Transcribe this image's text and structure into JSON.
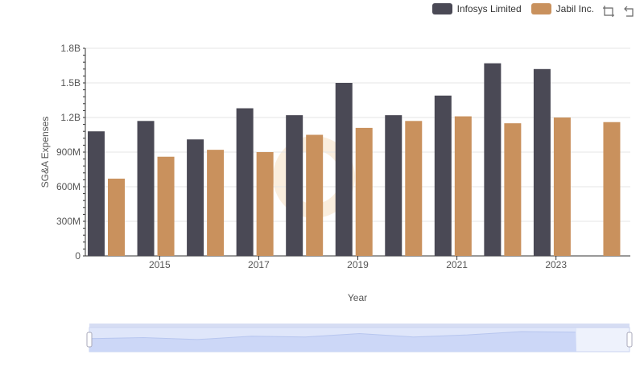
{
  "chart_data": {
    "type": "bar",
    "categories": [
      "2014",
      "2015",
      "2016",
      "2017",
      "2018",
      "2019",
      "2020",
      "2021",
      "2022",
      "2023",
      "2024"
    ],
    "x_tick_labels": [
      "2015",
      "2017",
      "2019",
      "2021",
      "2023"
    ],
    "series": [
      {
        "name": "Infosys Limited",
        "color": "#4a4955",
        "values": [
          1.08,
          1.17,
          1.01,
          1.28,
          1.22,
          1.5,
          1.22,
          1.39,
          1.67,
          1.62,
          null
        ]
      },
      {
        "name": "Jabil Inc.",
        "color": "#c9915d",
        "values": [
          0.67,
          0.86,
          0.92,
          0.9,
          1.05,
          1.11,
          1.17,
          1.21,
          1.15,
          1.2,
          1.16
        ]
      }
    ],
    "value_unit": "billions USD",
    "ylim": [
      0,
      1.8
    ],
    "y_ticks": [
      0,
      0.3,
      0.6,
      0.9,
      1.2,
      1.5,
      1.8
    ],
    "y_tick_labels": [
      "0",
      "300M",
      "600M",
      "900M",
      "1.2B",
      "1.5B",
      "1.8B"
    ],
    "xlabel": "Year",
    "ylabel": "SG&A Expenses",
    "grid": true,
    "legend_position": "top-right"
  },
  "toolbar": {
    "icons": [
      "restore-zoom-icon",
      "reset-icon"
    ]
  }
}
